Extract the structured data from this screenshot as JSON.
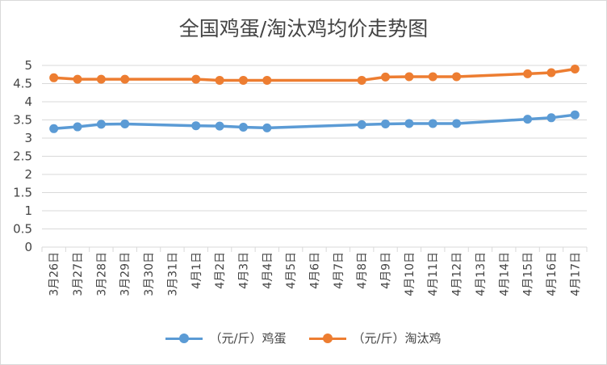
{
  "chart_data": {
    "type": "line",
    "title": "全国鸡蛋/淘汰鸡均价走势图",
    "categories": [
      "3月26日",
      "3月27日",
      "3月28日",
      "3月29日",
      "3月30日",
      "3月31日",
      "4月1日",
      "4月2日",
      "4月3日",
      "4月4日",
      "4月5日",
      "4月6日",
      "4月7日",
      "4月8日",
      "4月9日",
      "4月10日",
      "4月11日",
      "4月12日",
      "4月13日",
      "4月14日",
      "4月15日",
      "4月16日",
      "4月17日"
    ],
    "ylim": [
      0,
      5
    ],
    "yticks": [
      "0",
      "0.5",
      "1",
      "1.5",
      "2",
      "2.5",
      "3",
      "3.5",
      "4",
      "4.5",
      "5"
    ],
    "grid": true,
    "legend_position": "bottom",
    "series": [
      {
        "name": "（元/斤）鸡蛋",
        "color": "#5b9bd5",
        "values": [
          3.26,
          3.31,
          3.38,
          3.39,
          null,
          null,
          3.34,
          3.33,
          3.3,
          3.28,
          null,
          null,
          null,
          3.37,
          3.39,
          3.4,
          3.4,
          3.4,
          null,
          null,
          3.52,
          3.56,
          3.64
        ]
      },
      {
        "name": "（元/斤）淘汰鸡",
        "color": "#ed7d31",
        "values": [
          4.66,
          4.62,
          4.62,
          4.62,
          null,
          null,
          4.62,
          4.59,
          4.59,
          4.59,
          null,
          null,
          null,
          4.59,
          4.68,
          4.69,
          4.69,
          4.69,
          null,
          null,
          4.77,
          4.8,
          4.9
        ]
      }
    ]
  }
}
